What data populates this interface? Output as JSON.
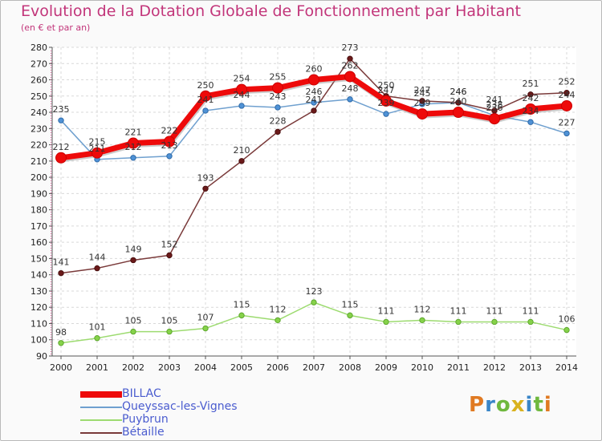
{
  "chart_data": {
    "type": "line",
    "title": "Evolution de la Dotation Globale de Fonctionnement par Habitant",
    "subtitle": "(en € et par an)",
    "x": [
      "2000",
      "2001",
      "2002",
      "2003",
      "2004",
      "2005",
      "2006",
      "2007",
      "2008",
      "2009",
      "2010",
      "2011",
      "2012",
      "2013",
      "2014"
    ],
    "ylim": [
      90,
      280
    ],
    "yticks": [
      90,
      100,
      110,
      120,
      130,
      140,
      150,
      160,
      170,
      180,
      190,
      200,
      210,
      220,
      230,
      240,
      250,
      260,
      270,
      280
    ],
    "grid": true,
    "series": [
      {
        "name": "BILLAC",
        "color": "#ee0a0a",
        "values": [
          212,
          215,
          221,
          222,
          250,
          254,
          255,
          260,
          262,
          247,
          239,
          240,
          236,
          242,
          244
        ]
      },
      {
        "name": "Queyssac-les-Vignes",
        "color": "#6fa0cf",
        "values": [
          235,
          211,
          212,
          213,
          241,
          244,
          243,
          246,
          248,
          239,
          245,
          246,
          238,
          234,
          227
        ]
      },
      {
        "name": "Puybrun",
        "color": "#9ddb70",
        "values": [
          98,
          101,
          105,
          105,
          107,
          115,
          112,
          123,
          115,
          111,
          112,
          111,
          111,
          111,
          106
        ]
      },
      {
        "name": "Bétaille",
        "color": "#7a3a3a",
        "values": [
          141,
          144,
          149,
          152,
          193,
          210,
          228,
          241,
          273,
          250,
          247,
          246,
          241,
          251,
          252
        ]
      }
    ]
  },
  "brand": {
    "letters": [
      "P",
      "r",
      "o",
      "x",
      "i",
      "t",
      "i"
    ]
  }
}
